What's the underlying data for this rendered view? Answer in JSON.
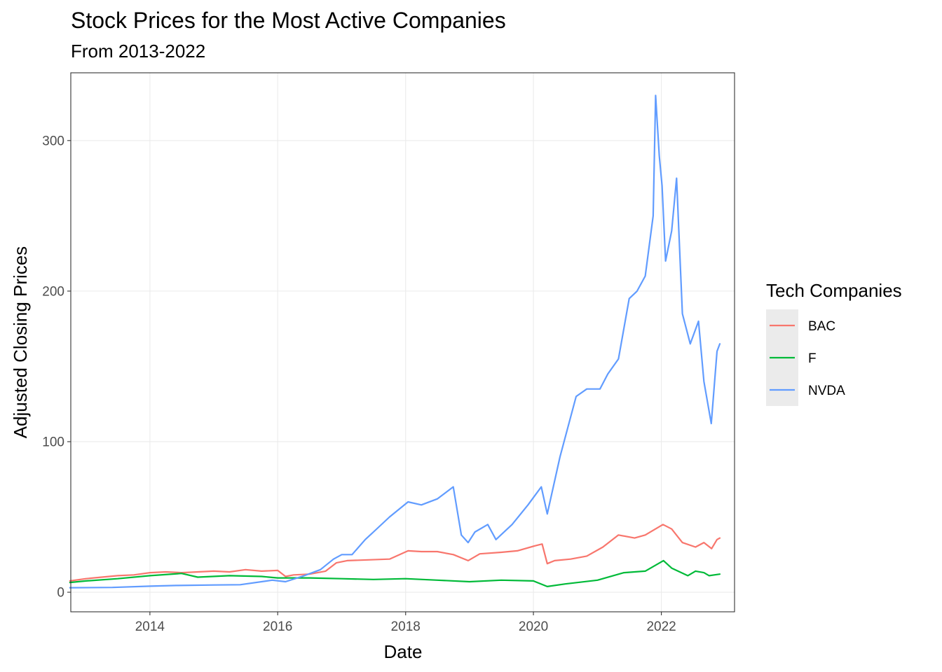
{
  "chart_data": {
    "type": "line",
    "title": "Stock Prices for the Most Active Companies",
    "subtitle": "From 2013-2022",
    "xlabel": "Date",
    "ylabel": "Adjusted Closing Prices",
    "x_axis_type": "date",
    "xlim": [
      "2012-10-06",
      "2023-02-23"
    ],
    "ylim": [
      -13,
      345
    ],
    "x_ticks": [
      "2014",
      "2016",
      "2018",
      "2020",
      "2022"
    ],
    "x_tick_dates": [
      "2014-01-01",
      "2016-01-01",
      "2018-01-01",
      "2020-01-01",
      "2022-01-01"
    ],
    "y_ticks": [
      0,
      100,
      200,
      300
    ],
    "grid": true,
    "legend": {
      "title": "Tech Companies",
      "position": "right"
    },
    "series": [
      {
        "name": "BAC",
        "color": "#F8766D",
        "x": [
          "2012-10-01",
          "2013-01-01",
          "2013-04-01",
          "2013-07-01",
          "2013-10-01",
          "2014-01-01",
          "2014-04-01",
          "2014-07-01",
          "2014-10-01",
          "2015-01-01",
          "2015-04-01",
          "2015-07-01",
          "2015-10-01",
          "2016-01-01",
          "2016-02-15",
          "2016-04-01",
          "2016-07-01",
          "2016-10-01",
          "2016-12-01",
          "2017-02-01",
          "2017-06-01",
          "2017-10-01",
          "2018-01-15",
          "2018-04-01",
          "2018-07-01",
          "2018-10-01",
          "2018-12-24",
          "2019-03-01",
          "2019-07-01",
          "2019-10-01",
          "2020-01-15",
          "2020-02-20",
          "2020-03-20",
          "2020-05-01",
          "2020-08-01",
          "2020-11-01",
          "2021-02-01",
          "2021-05-01",
          "2021-08-01",
          "2021-10-01",
          "2022-01-10",
          "2022-03-01",
          "2022-05-01",
          "2022-07-15",
          "2022-09-01",
          "2022-10-15",
          "2022-11-15",
          "2022-12-01"
        ],
        "values": [
          7.5,
          9,
          10,
          11,
          11.5,
          13,
          13.5,
          13,
          13.5,
          14,
          13.5,
          15,
          14,
          14.5,
          10.5,
          11.5,
          12,
          14,
          19.5,
          21,
          21.5,
          22,
          27.5,
          27,
          27,
          25,
          21,
          25.5,
          26.5,
          27.5,
          31,
          32,
          19,
          21,
          22,
          24,
          30,
          38,
          36,
          38,
          45,
          42,
          33,
          30,
          33,
          29,
          35,
          36
        ]
      },
      {
        "name": "F",
        "color": "#00BA38",
        "x": [
          "2012-10-01",
          "2013-01-01",
          "2013-07-01",
          "2014-01-01",
          "2014-07-01",
          "2014-10-01",
          "2015-04-01",
          "2015-10-01",
          "2016-01-01",
          "2016-07-01",
          "2017-01-01",
          "2017-07-01",
          "2018-01-01",
          "2018-07-01",
          "2019-01-01",
          "2019-07-01",
          "2020-01-01",
          "2020-03-20",
          "2020-07-01",
          "2021-01-01",
          "2021-06-01",
          "2021-10-01",
          "2022-01-13",
          "2022-03-01",
          "2022-06-01",
          "2022-07-15",
          "2022-09-01",
          "2022-10-01",
          "2022-12-01"
        ],
        "values": [
          6.5,
          7.5,
          9,
          11,
          12.5,
          10,
          11,
          10.5,
          9.5,
          9.5,
          9,
          8.5,
          9,
          8,
          7,
          8,
          7.5,
          3.8,
          5.5,
          8,
          13,
          14,
          21,
          16,
          11,
          14,
          13,
          11,
          12
        ]
      },
      {
        "name": "NVDA",
        "color": "#619CFF",
        "x": [
          "2012-10-01",
          "2013-06-01",
          "2014-01-01",
          "2014-06-01",
          "2015-01-01",
          "2015-06-01",
          "2015-12-01",
          "2016-02-15",
          "2016-06-01",
          "2016-09-01",
          "2016-11-15",
          "2017-01-01",
          "2017-03-01",
          "2017-05-15",
          "2017-07-01",
          "2017-10-01",
          "2018-01-15",
          "2018-04-01",
          "2018-07-01",
          "2018-09-30",
          "2018-11-15",
          "2018-12-24",
          "2019-02-01",
          "2019-04-15",
          "2019-06-01",
          "2019-09-01",
          "2019-12-01",
          "2020-02-15",
          "2020-03-20",
          "2020-06-01",
          "2020-09-01",
          "2020-11-01",
          "2021-01-15",
          "2021-03-01",
          "2021-05-01",
          "2021-07-01",
          "2021-08-15",
          "2021-10-01",
          "2021-11-15",
          "2021-11-29",
          "2021-12-20",
          "2022-01-05",
          "2022-01-25",
          "2022-03-01",
          "2022-03-29",
          "2022-05-01",
          "2022-06-15",
          "2022-08-01",
          "2022-09-01",
          "2022-10-13",
          "2022-11-15",
          "2022-12-01"
        ],
        "values": [
          3,
          3.2,
          4,
          4.5,
          4.8,
          5,
          8,
          7,
          11,
          15,
          22,
          25,
          25,
          35,
          40,
          50,
          60,
          58,
          62,
          70,
          38,
          33,
          40,
          45,
          35,
          45,
          58,
          70,
          52,
          90,
          130,
          135,
          135,
          145,
          155,
          195,
          200,
          210,
          250,
          330,
          290,
          270,
          220,
          240,
          275,
          185,
          165,
          180,
          140,
          112,
          160,
          165
        ]
      }
    ]
  }
}
